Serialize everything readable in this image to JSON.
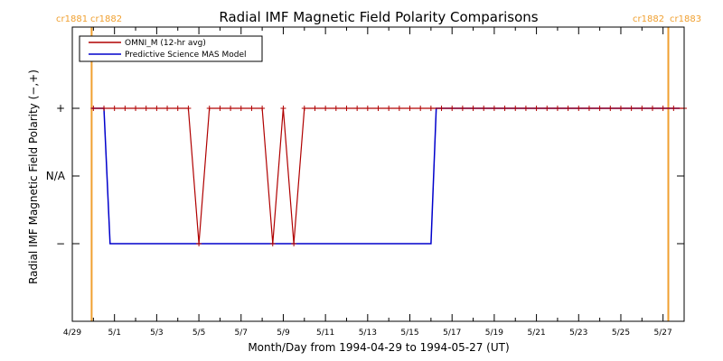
{
  "chart_data": {
    "type": "line",
    "title": "Radial IMF Magnetic Field Polarity Comparisons",
    "xlabel": "Month/Day from 1994-04-29 to 1994-05-27 (UT)",
    "ylabel": "Radial IMF Magnetic Field Polarity (−,+)",
    "xlim": [
      "1994-04-29",
      "1994-05-28"
    ],
    "x_ticks": [
      "4/29",
      "5/1",
      "5/3",
      "5/5",
      "5/7",
      "5/9",
      "5/11",
      "5/13",
      "5/15",
      "5/17",
      "5/19",
      "5/21",
      "5/23",
      "5/25",
      "5/27"
    ],
    "y_ticks": [
      "+",
      "N/A",
      "−"
    ],
    "grid": false,
    "legend_position": "top-left",
    "markers": [
      {
        "x": "1994-04-29T22:00",
        "labels": [
          "cr1881",
          "cr1882"
        ]
      },
      {
        "x": "1994-05-27T06:00",
        "labels": [
          "cr1882",
          "cr1883"
        ]
      }
    ],
    "series": [
      {
        "name": "OMNI_M (12-hr avg)",
        "color": "#b00000",
        "marker": "plus",
        "start": "1994-04-30T00:00",
        "step_hours": 12,
        "values": [
          "+",
          "+",
          "+",
          "+",
          "+",
          "+",
          "+",
          "+",
          "+",
          "+",
          "-",
          "+",
          "+",
          "+",
          "+",
          "+",
          "+",
          "-",
          "+",
          "-",
          "+",
          "+",
          "+",
          "+",
          "+",
          "+",
          "+",
          "+",
          "+",
          "+",
          "+",
          "+",
          "+",
          "+",
          "+",
          "+",
          "+",
          "+",
          "+",
          "+",
          "+",
          "+",
          "+",
          "+",
          "+",
          "+",
          "+",
          "+",
          "+",
          "+",
          "+",
          "+",
          "+",
          "+",
          "+",
          "+",
          "+"
        ]
      },
      {
        "name": "Predictive Science MAS Model",
        "color": "#0000cc",
        "points": [
          {
            "x": "1994-04-29T22:00",
            "y": "+"
          },
          {
            "x": "1994-04-30T12:00",
            "y": "+"
          },
          {
            "x": "1994-04-30T19:00",
            "y": "-"
          },
          {
            "x": "1994-05-16T00:00",
            "y": "-"
          },
          {
            "x": "1994-05-16T06:00",
            "y": "+"
          },
          {
            "x": "1994-05-27T19:00",
            "y": "+"
          }
        ]
      }
    ],
    "colors": {
      "marker_line": "#f0a030",
      "axes": "#000000"
    }
  }
}
